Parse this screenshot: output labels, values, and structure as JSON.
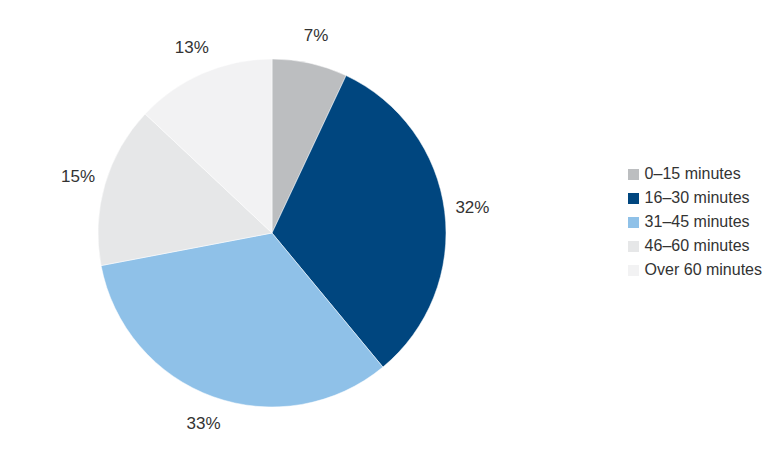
{
  "chart_data": {
    "type": "pie",
    "categories": [
      "0–15 minutes",
      "16–30 minutes",
      "31–45 minutes",
      "46–60 minutes",
      "Over 60 minutes"
    ],
    "values": [
      7,
      32,
      33,
      15,
      13
    ],
    "value_labels": [
      "7%",
      "32%",
      "33%",
      "15%",
      "13%"
    ],
    "colors": [
      "#bcbec0",
      "#00467f",
      "#8fc1e8",
      "#e6e7e8",
      "#f2f2f3"
    ],
    "legend": "right",
    "data_labels": true
  }
}
